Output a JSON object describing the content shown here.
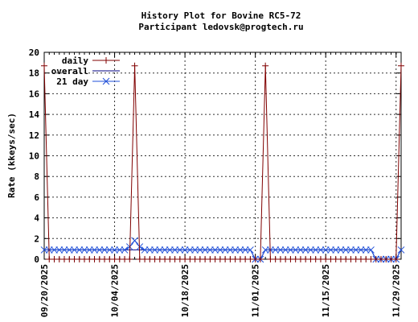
{
  "chart_data": {
    "type": "line",
    "title": "History Plot for Bovine RC5-72",
    "subtitle": "Participant ledovsk@progtech.ru",
    "xlabel": "",
    "ylabel": "Rate (kkeys/sec)",
    "ylim": [
      0,
      20
    ],
    "yticks": [
      "0",
      "2",
      "4",
      "6",
      "8",
      "10",
      "12",
      "14",
      "16",
      "18",
      "20"
    ],
    "xlim": [
      "2025-09-20",
      "2025-11-30"
    ],
    "xticks": [
      "09/20/2025",
      "10/04/2025",
      "10/18/2025",
      "11/01/2025",
      "11/15/2025",
      "11/29/2025"
    ],
    "grid": true,
    "legend_position": "top-left",
    "series": [
      {
        "name": "daily",
        "color": "#800000",
        "marker": "plus",
        "points": [
          [
            "2025-09-20",
            18.7
          ],
          [
            "2025-09-21",
            0
          ],
          [
            "2025-10-07",
            0
          ],
          [
            "2025-10-08",
            18.7
          ],
          [
            "2025-10-09",
            0
          ],
          [
            "2025-10-31",
            0
          ],
          [
            "2025-11-01",
            0
          ],
          [
            "2025-11-02",
            0
          ],
          [
            "2025-11-03",
            18.7
          ],
          [
            "2025-11-04",
            0
          ],
          [
            "2025-11-28",
            0
          ],
          [
            "2025-11-29",
            0
          ],
          [
            "2025-11-30",
            18.7
          ]
        ]
      },
      {
        "name": "overall",
        "color": "#000080",
        "marker": "none",
        "points": [
          [
            "2025-09-20",
            0.9
          ],
          [
            "2025-10-31",
            0.9
          ],
          [
            "2025-11-01",
            0
          ],
          [
            "2025-11-02",
            0
          ],
          [
            "2025-11-03",
            0.9
          ],
          [
            "2025-11-24",
            0.9
          ],
          [
            "2025-11-25",
            0
          ],
          [
            "2025-11-29",
            0
          ],
          [
            "2025-11-30",
            0.9
          ]
        ]
      },
      {
        "name": "21 day",
        "color": "#1f4fd8",
        "marker": "x",
        "points": [
          [
            "2025-09-20",
            0.9
          ],
          [
            "2025-10-06",
            0.9
          ],
          [
            "2025-10-07",
            1.2
          ],
          [
            "2025-10-08",
            1.8
          ],
          [
            "2025-10-09",
            1.2
          ],
          [
            "2025-10-10",
            0.9
          ],
          [
            "2025-10-31",
            0.9
          ],
          [
            "2025-11-01",
            0
          ],
          [
            "2025-11-02",
            0
          ],
          [
            "2025-11-03",
            0.9
          ],
          [
            "2025-11-24",
            0.9
          ],
          [
            "2025-11-25",
            0
          ],
          [
            "2025-11-29",
            0
          ],
          [
            "2025-11-30",
            0.9
          ]
        ]
      }
    ]
  }
}
